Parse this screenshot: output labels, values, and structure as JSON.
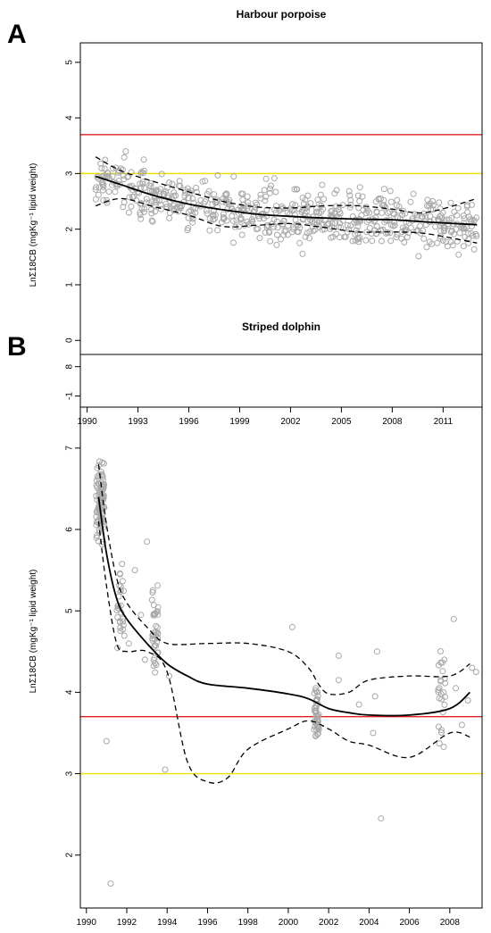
{
  "chart_data": [
    {
      "type": "scatter",
      "panel_label": "A",
      "title": "Harbour porpoise",
      "xlabel": "",
      "ylabel": "LnΣ18CB (mgKg⁻¹ lipid weight)",
      "xlim": [
        1989.6,
        2013.3
      ],
      "ylim": [
        -1.2,
        5.35
      ],
      "xticks": [
        1990,
        1993,
        1996,
        1999,
        2002,
        2005,
        2008,
        2011
      ],
      "yticks": [
        -1,
        0,
        1,
        2,
        3,
        4,
        5
      ],
      "grid": false,
      "reference_lines": [
        {
          "y": 3.7,
          "color": "#e02020"
        },
        {
          "y": 3.0,
          "color": "#f0e000"
        }
      ],
      "colors": {
        "points": "#a8a8a8",
        "fit": "#000000",
        "ci": "#000000"
      },
      "fit": {
        "name": "",
        "x": [
          1990.5,
          1992,
          1994,
          1996,
          1998,
          2000,
          2002,
          2004,
          2006,
          2008,
          2010,
          2013
        ],
        "y": [
          2.95,
          2.8,
          2.6,
          2.45,
          2.35,
          2.27,
          2.23,
          2.2,
          2.18,
          2.17,
          2.13,
          2.08
        ]
      },
      "ci_upper": {
        "name": "",
        "x": [
          1990.5,
          1992,
          1994,
          1996,
          1998,
          2000,
          2002,
          2004,
          2006,
          2008,
          2010,
          2013
        ],
        "y": [
          3.3,
          3.05,
          2.85,
          2.67,
          2.5,
          2.4,
          2.38,
          2.42,
          2.42,
          2.36,
          2.3,
          2.55
        ]
      },
      "ci_lower": {
        "name": "",
        "x": [
          1990.5,
          1992,
          1994,
          1996,
          1998,
          2000,
          2002,
          2004,
          2006,
          2008,
          2010,
          2013
        ],
        "y": [
          2.42,
          2.55,
          2.4,
          2.25,
          2.05,
          2.07,
          2.1,
          2.03,
          1.95,
          1.95,
          1.92,
          1.75
        ]
      },
      "points_seed": 12345,
      "points_count": 650
    },
    {
      "type": "scatter",
      "panel_label": "B",
      "title": "Striped dolphin",
      "xlabel": "",
      "ylabel": "LnΣ18CB (mgKg⁻¹ lipid weight)",
      "xlim": [
        1989.7,
        2009.6
      ],
      "ylim": [
        1.35,
        8.15
      ],
      "xticks": [
        1990,
        1992,
        1994,
        1996,
        1998,
        2000,
        2002,
        2004,
        2006,
        2008
      ],
      "yticks": [
        2,
        3,
        4,
        5,
        6,
        7,
        8
      ],
      "grid": false,
      "reference_lines": [
        {
          "y": 3.7,
          "color": "#e02020"
        },
        {
          "y": 3.0,
          "color": "#f0e000"
        }
      ],
      "colors": {
        "points": "#a8a8a8",
        "fit": "#000000",
        "ci": "#000000"
      },
      "fit": {
        "name": "",
        "x": [
          1990.6,
          1991,
          1991.5,
          1992,
          1993,
          1994,
          1995,
          1996,
          1998,
          2000,
          2001,
          2002,
          2003,
          2004,
          2006,
          2008,
          2009
        ],
        "y": [
          6.4,
          5.7,
          5.15,
          4.9,
          4.6,
          4.35,
          4.2,
          4.1,
          4.05,
          3.98,
          3.92,
          3.8,
          3.75,
          3.72,
          3.72,
          3.8,
          4.0
        ]
      },
      "ci_upper": {
        "name": "",
        "x": [
          1990.6,
          1991,
          1991.5,
          1992,
          1993,
          1994,
          1996,
          1998,
          2000,
          2001,
          2001.5,
          2002,
          2003,
          2004,
          2006,
          2008,
          2009
        ],
        "y": [
          6.8,
          6.05,
          5.4,
          5.1,
          4.8,
          4.6,
          4.6,
          4.6,
          4.5,
          4.3,
          4.1,
          3.98,
          4.0,
          4.15,
          4.2,
          4.2,
          4.35
        ]
      },
      "ci_lower": {
        "name": "",
        "x": [
          1990.6,
          1991,
          1991.5,
          1992,
          1993,
          1994,
          1995,
          1996,
          1997,
          1998,
          2000,
          2001,
          2002,
          2003,
          2004,
          2006,
          2008,
          2009
        ],
        "y": [
          6.1,
          5.3,
          4.6,
          4.5,
          4.5,
          4.25,
          3.15,
          2.9,
          2.95,
          3.3,
          3.55,
          3.65,
          3.55,
          3.4,
          3.35,
          3.2,
          3.5,
          3.45
        ]
      },
      "clusters": [
        {
          "x": 1990.7,
          "xspread": 0.22,
          "n": 95,
          "ymin": 4.8,
          "ymax": 7.9
        },
        {
          "x": 1991.7,
          "xspread": 0.2,
          "n": 28,
          "ymin": 3.4,
          "ymax": 6.7
        },
        {
          "x": 1993.4,
          "xspread": 0.15,
          "n": 40,
          "ymin": 3.0,
          "ymax": 6.5
        },
        {
          "x": 2001.4,
          "xspread": 0.12,
          "n": 45,
          "ymin": 2.6,
          "ymax": 4.8
        },
        {
          "x": 2007.6,
          "xspread": 0.18,
          "n": 25,
          "ymin": 1.9,
          "ymax": 6.2
        }
      ],
      "sparse_points": [
        {
          "x": 1991.2,
          "y": 1.65
        },
        {
          "x": 1991.0,
          "y": 3.4
        },
        {
          "x": 1992.1,
          "y": 4.6
        },
        {
          "x": 1992.4,
          "y": 5.5
        },
        {
          "x": 1992.7,
          "y": 4.95
        },
        {
          "x": 1993.0,
          "y": 5.85
        },
        {
          "x": 1992.9,
          "y": 4.4
        },
        {
          "x": 1994.1,
          "y": 4.2
        },
        {
          "x": 1993.9,
          "y": 3.05
        },
        {
          "x": 2000.2,
          "y": 4.8
        },
        {
          "x": 2002.5,
          "y": 4.45
        },
        {
          "x": 2002.5,
          "y": 4.15
        },
        {
          "x": 2004.4,
          "y": 4.5
        },
        {
          "x": 2004.3,
          "y": 3.95
        },
        {
          "x": 2004.2,
          "y": 3.5
        },
        {
          "x": 2004.6,
          "y": 2.45
        },
        {
          "x": 2003.5,
          "y": 3.85
        },
        {
          "x": 2008.2,
          "y": 4.9
        },
        {
          "x": 2008.6,
          "y": 3.6
        },
        {
          "x": 2008.3,
          "y": 4.05
        },
        {
          "x": 2009.1,
          "y": 4.3
        },
        {
          "x": 2009.3,
          "y": 4.25
        },
        {
          "x": 2008.9,
          "y": 3.9
        }
      ],
      "points_seed": 777
    }
  ]
}
